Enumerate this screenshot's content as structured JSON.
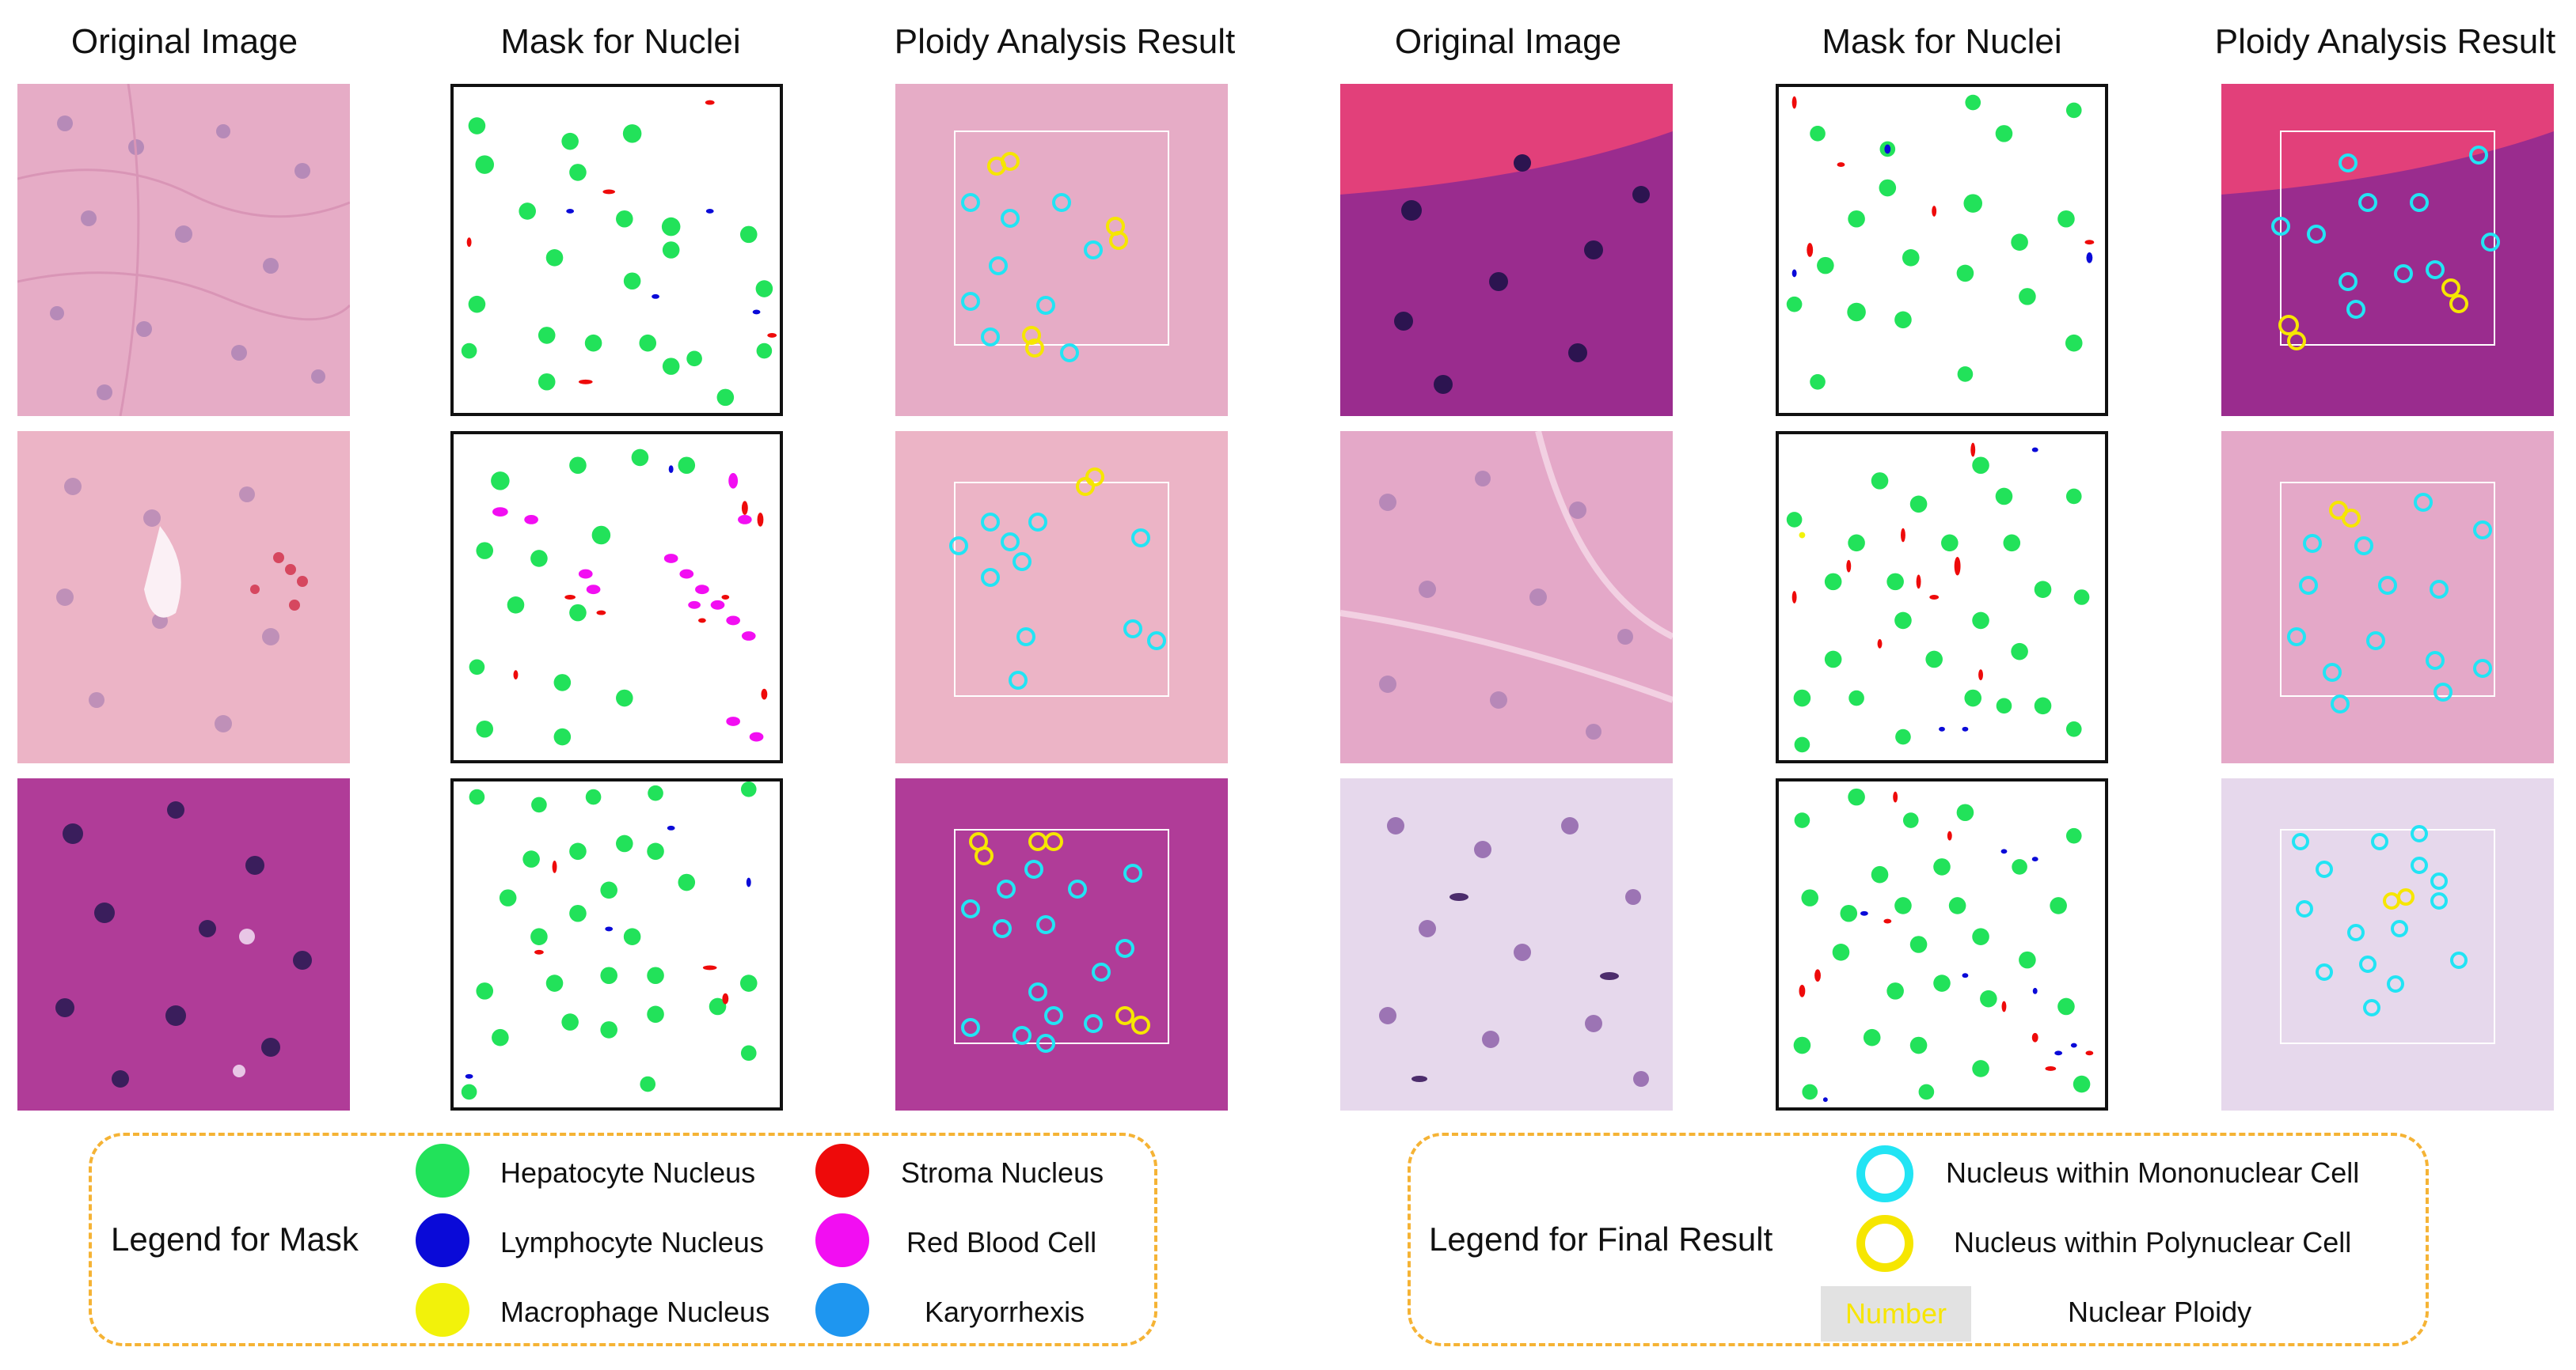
{
  "columns": {
    "left": [
      "Original Image",
      "Mask for Nuclei",
      "Ploidy Analysis Result"
    ],
    "right": [
      "Original Image",
      "Mask for Nuclei",
      "Ploidy Analysis Result"
    ]
  },
  "legend_mask": {
    "title": "Legend for Mask",
    "items": [
      {
        "label": "Hepatocyte Nucleus",
        "color": "#22e25a"
      },
      {
        "label": "Lymphocyte Nucleus",
        "color": "#0a0ad8"
      },
      {
        "label": "Macrophage Nucleus",
        "color": "#f2f20a"
      },
      {
        "label": "Stroma Nucleus",
        "color": "#ee0a0a"
      },
      {
        "label": "Red Blood Cell",
        "color": "#f20ef2"
      },
      {
        "label": "Karyorrhexis",
        "color": "#1e96f0"
      }
    ]
  },
  "legend_result": {
    "title": "Legend for Final Result",
    "items": [
      {
        "label": "Nucleus within Mononuclear Cell",
        "color": "#22e4f4"
      },
      {
        "label": "Nucleus within Polynuclear Cell",
        "color": "#f6e600"
      },
      {
        "label": "Nuclear Ploidy",
        "sample": "Number"
      }
    ]
  },
  "colors": {
    "accent_dashed": "#f5b335",
    "stain_pink": "#e8a8c4",
    "stain_magenta": "#a02c8c"
  }
}
